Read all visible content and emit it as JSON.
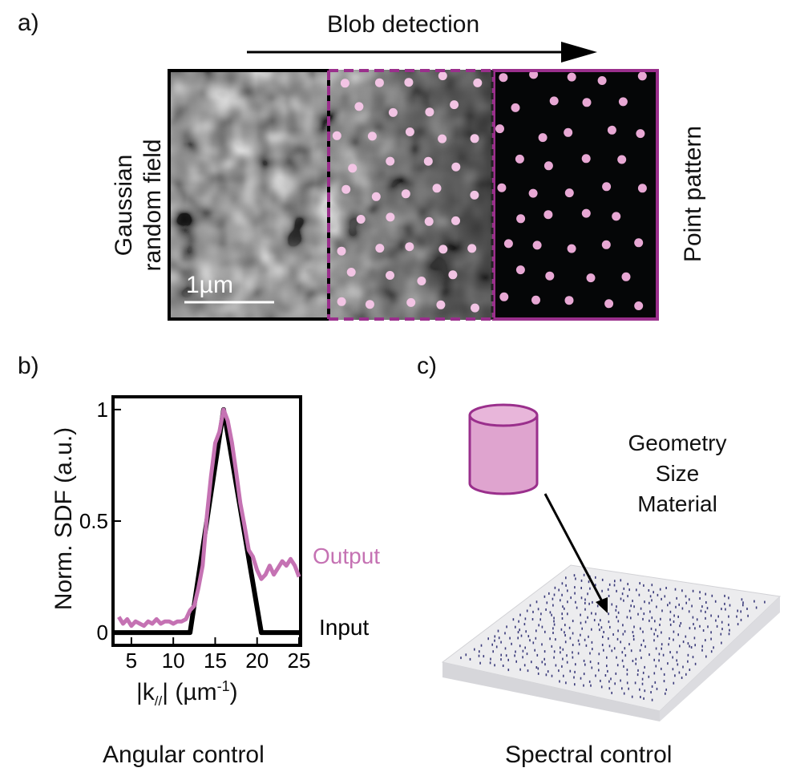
{
  "panel_a": {
    "label": "a)",
    "arrow_title": "Blob detection",
    "left_title": [
      "Gaussian",
      "random field"
    ],
    "right_title": "Point pattern",
    "scale_bar": "1µm",
    "colors": {
      "pink": "#e8a8d4",
      "purple": "#9a2f8c",
      "black": "#000000"
    }
  },
  "panel_b": {
    "label": "b)",
    "caption": "Angular control",
    "output_label": "Output",
    "input_label": "Input",
    "colors": {
      "output": "#c572b3",
      "input": "#000000"
    }
  },
  "panel_c": {
    "label": "c)",
    "caption": "Spectral control",
    "properties": [
      "Geometry",
      "Size",
      "Material"
    ],
    "colors": {
      "cylinder_fill": "#dfa4cf",
      "cylinder_stroke": "#9a2f8c",
      "slab": "#e7e7e9",
      "dots": "#3a3a7a"
    }
  },
  "chart_data": {
    "type": "line",
    "xlabel": "|k//| (µm-1)",
    "ylabel": "Norm. SDF (a.u.)",
    "xlim": [
      3,
      25
    ],
    "ylim": [
      -0.05,
      1.05
    ],
    "xticks": [
      "5",
      "10",
      "15",
      "20",
      "25"
    ],
    "yticks": [
      "0",
      "0.5",
      "1"
    ],
    "series": [
      {
        "name": "Input",
        "x": [
          3,
          12,
          16,
          20.5,
          25
        ],
        "y": [
          0,
          0,
          1,
          0,
          0
        ]
      },
      {
        "name": "Output",
        "x": [
          3.5,
          4,
          4.5,
          5,
          5.5,
          6,
          6.5,
          7,
          7.5,
          8,
          8.5,
          9,
          9.5,
          10,
          10.5,
          11,
          11.5,
          12,
          12.5,
          13,
          13.5,
          14,
          14.5,
          15,
          15.5,
          16,
          16.5,
          17,
          17.5,
          18,
          18.5,
          19,
          19.5,
          20,
          20.5,
          21,
          21.5,
          22,
          22.5,
          23,
          23.5,
          24,
          24.5,
          25
        ],
        "y": [
          0.07,
          0.04,
          0.06,
          0.03,
          0.05,
          0.04,
          0.03,
          0.05,
          0.04,
          0.06,
          0.04,
          0.05,
          0.05,
          0.04,
          0.05,
          0.05,
          0.06,
          0.1,
          0.12,
          0.2,
          0.3,
          0.52,
          0.7,
          0.85,
          0.9,
          1.0,
          0.95,
          0.85,
          0.72,
          0.58,
          0.48,
          0.37,
          0.34,
          0.28,
          0.24,
          0.26,
          0.3,
          0.26,
          0.29,
          0.32,
          0.3,
          0.33,
          0.3,
          0.25
        ]
      }
    ]
  }
}
